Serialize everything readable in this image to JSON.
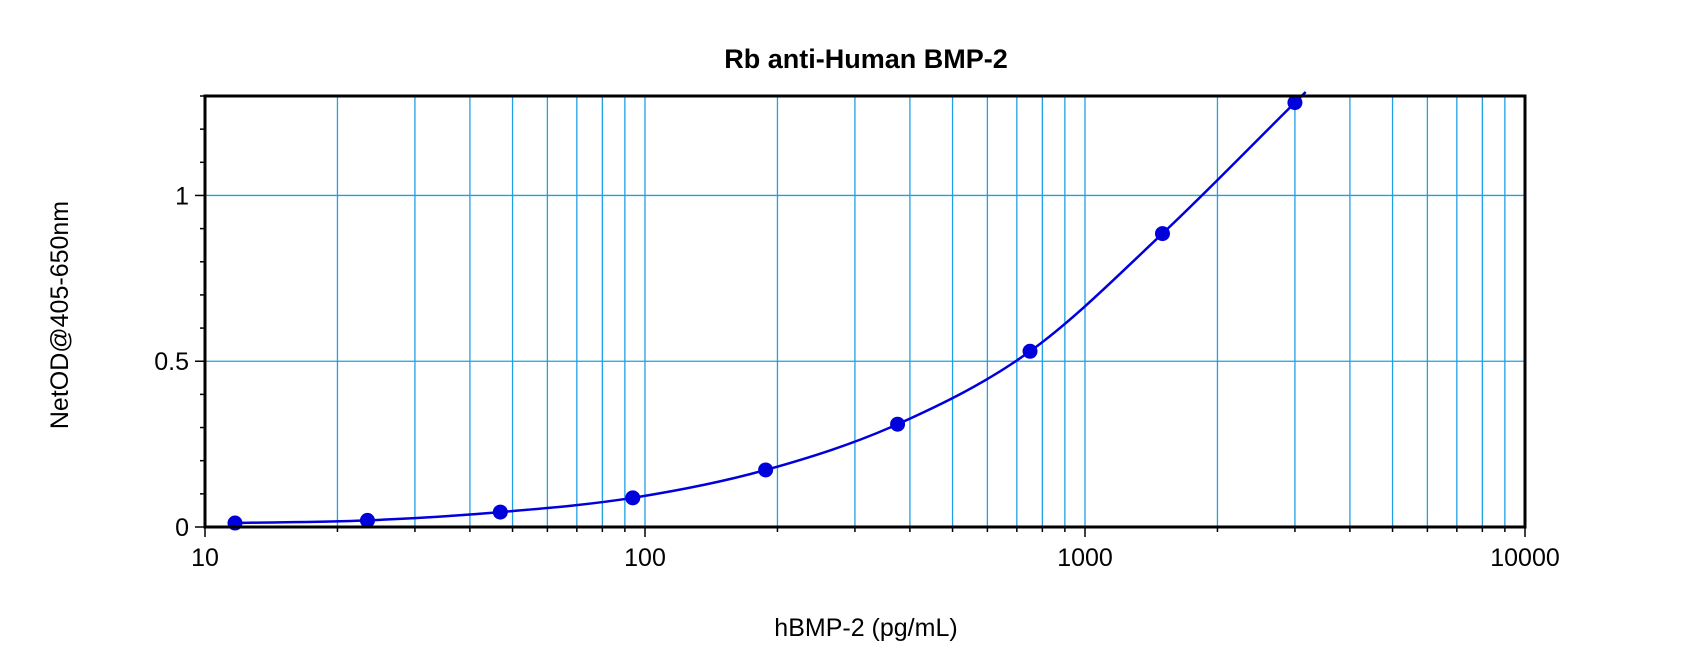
{
  "chart_data": {
    "type": "scatter",
    "title": "Rb anti-Human BMP-2",
    "xlabel": "hBMP-2 (pg/mL)",
    "ylabel": "NetOD@405-650nm",
    "xscale": "log",
    "xlim": [
      10,
      10000
    ],
    "ylim": [
      0,
      1.3
    ],
    "grid": true,
    "xticks": [
      {
        "value": 10,
        "label": "10"
      },
      {
        "value": 100,
        "label": "100"
      },
      {
        "value": 1000,
        "label": "1000"
      },
      {
        "value": 10000,
        "label": "10000"
      }
    ],
    "yticks": [
      {
        "value": 0,
        "label": "0"
      },
      {
        "value": 0.5,
        "label": "0.5"
      },
      {
        "value": 1,
        "label": "1"
      }
    ],
    "series": [
      {
        "x": [
          11.7,
          23.4,
          46.9,
          93.8,
          188,
          375,
          750,
          1500,
          3000
        ],
        "y": [
          0.012,
          0.02,
          0.045,
          0.088,
          0.172,
          0.31,
          0.53,
          0.885,
          1.28
        ],
        "color": "#0000dd",
        "fit": "curve"
      }
    ],
    "colors": {
      "grid": "#1ea0e6",
      "axis": "#000000",
      "series": "#0000dd"
    }
  }
}
